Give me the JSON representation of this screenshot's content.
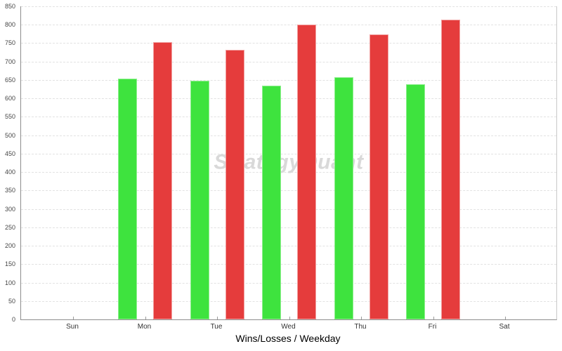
{
  "chart_data": {
    "type": "bar",
    "title": "Wins/Losses / Weekday",
    "xlabel": "Wins/Losses / Weekday",
    "ylabel": "",
    "watermark": "StrategyQuant",
    "categories": [
      "Sun",
      "Mon",
      "Tue",
      "Wed",
      "Thu",
      "Fri",
      "Sat"
    ],
    "series": [
      {
        "name": "Wins",
        "color": "#3ee33e",
        "border_color": "#8def8d",
        "values": [
          0,
          654,
          648,
          634,
          657,
          639,
          0
        ]
      },
      {
        "name": "Losses",
        "color": "#e53c3c",
        "border_color": "#f2a0a0",
        "values": [
          0,
          753,
          731,
          801,
          774,
          814,
          0
        ]
      }
    ],
    "ylim": [
      0,
      850
    ],
    "ytick_step": 50,
    "grid": "horizontal-dashed",
    "legend": "none",
    "style": {
      "background": "#ffffff",
      "grid_color": "#e2e2e2",
      "axis_color": "#8c8c8c",
      "right_border_color": "#c9c9c9",
      "y_tick_label_color": "#474747",
      "x_tick_label_color": "#333333",
      "title_color": "#000000",
      "watermark_color": "#d9d9d9"
    }
  }
}
